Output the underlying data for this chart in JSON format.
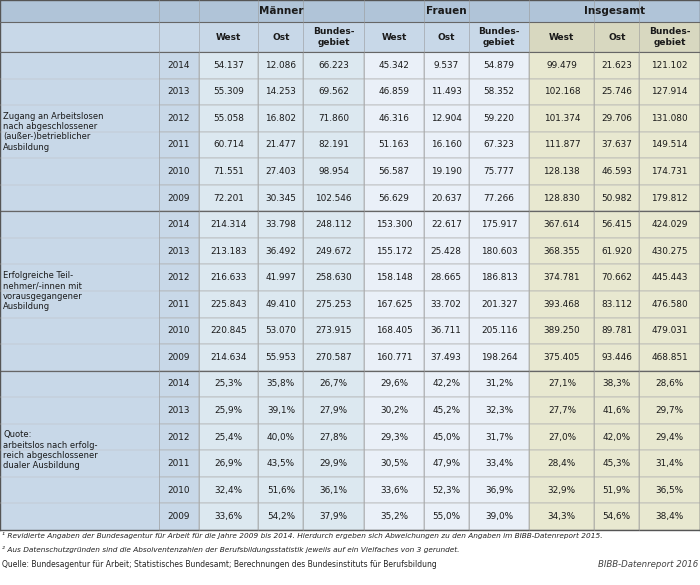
{
  "col_groups": [
    "Männer",
    "Frauen",
    "Insgesamt"
  ],
  "col_subheaders": [
    "West",
    "Ost",
    "Bundes-\ngebiet"
  ],
  "row_sections": [
    {
      "label": "Zugang an Arbeitslosen\nnach abgeschlossener\n(außer-)betrieblicher\nAusbildung",
      "years": [
        "2014",
        "2013",
        "2012",
        "2011",
        "2010",
        "2009"
      ],
      "data": [
        [
          "54.137",
          "12.086",
          "66.223",
          "45.342",
          "9.537",
          "54.879",
          "99.479",
          "21.623",
          "121.102"
        ],
        [
          "55.309",
          "14.253",
          "69.562",
          "46.859",
          "11.493",
          "58.352",
          "102.168",
          "25.746",
          "127.914"
        ],
        [
          "55.058",
          "16.802",
          "71.860",
          "46.316",
          "12.904",
          "59.220",
          "101.374",
          "29.706",
          "131.080"
        ],
        [
          "60.714",
          "21.477",
          "82.191",
          "51.163",
          "16.160",
          "67.323",
          "111.877",
          "37.637",
          "149.514"
        ],
        [
          "71.551",
          "27.403",
          "98.954",
          "56.587",
          "19.190",
          "75.777",
          "128.138",
          "46.593",
          "174.731"
        ],
        [
          "72.201",
          "30.345",
          "102.546",
          "56.629",
          "20.637",
          "77.266",
          "128.830",
          "50.982",
          "179.812"
        ]
      ]
    },
    {
      "label": "Erfolgreiche Teil-\nnehmer/-innen mit\nvorausgegangener\nAusbildung",
      "years": [
        "2014",
        "2013",
        "2012",
        "2011",
        "2010",
        "2009"
      ],
      "data": [
        [
          "214.314",
          "33.798",
          "248.112",
          "153.300",
          "22.617",
          "175.917",
          "367.614",
          "56.415",
          "424.029"
        ],
        [
          "213.183",
          "36.492",
          "249.672",
          "155.172",
          "25.428",
          "180.603",
          "368.355",
          "61.920",
          "430.275"
        ],
        [
          "216.633",
          "41.997",
          "258.630",
          "158.148",
          "28.665",
          "186.813",
          "374.781",
          "70.662",
          "445.443"
        ],
        [
          "225.843",
          "49.410",
          "275.253",
          "167.625",
          "33.702",
          "201.327",
          "393.468",
          "83.112",
          "476.580"
        ],
        [
          "220.845",
          "53.070",
          "273.915",
          "168.405",
          "36.711",
          "205.116",
          "389.250",
          "89.781",
          "479.031"
        ],
        [
          "214.634",
          "55.953",
          "270.587",
          "160.771",
          "37.493",
          "198.264",
          "375.405",
          "93.446",
          "468.851"
        ]
      ]
    },
    {
      "label": "Quote:\narbeitslos nach erfolg-\nreich abgeschlossener\ndualer Ausbildung",
      "years": [
        "2014",
        "2013",
        "2012",
        "2011",
        "2010",
        "2009"
      ],
      "data": [
        [
          "25,3%",
          "35,8%",
          "26,7%",
          "29,6%",
          "42,2%",
          "31,2%",
          "27,1%",
          "38,3%",
          "28,6%"
        ],
        [
          "25,9%",
          "39,1%",
          "27,9%",
          "30,2%",
          "45,2%",
          "32,3%",
          "27,7%",
          "41,6%",
          "29,7%"
        ],
        [
          "25,4%",
          "40,0%",
          "27,8%",
          "29,3%",
          "45,0%",
          "31,7%",
          "27,0%",
          "42,0%",
          "29,4%"
        ],
        [
          "26,9%",
          "43,5%",
          "29,9%",
          "30,5%",
          "47,9%",
          "33,4%",
          "28,4%",
          "45,3%",
          "31,4%"
        ],
        [
          "32,4%",
          "51,6%",
          "36,1%",
          "33,6%",
          "52,3%",
          "36,9%",
          "32,9%",
          "51,9%",
          "36,5%"
        ],
        [
          "33,6%",
          "54,2%",
          "37,9%",
          "35,2%",
          "55,0%",
          "39,0%",
          "34,3%",
          "54,6%",
          "38,4%"
        ]
      ]
    }
  ],
  "footnotes": [
    "¹ Revidierte Angaben der Bundesagentur für Arbeit für die Jahre 2009 bis 2014. Hierdurch ergeben sich Abweichungen zu den Angaben im BIBB-Datenreport 2015.",
    "² Aus Datenschutzgründen sind die Absolventenzahlen der Berufsbildungsstatistik jeweils auf ein Vielfaches von 3 gerundet.",
    "Quelle: Bundesagentur für Arbeit; Statistisches Bundesamt; Berechnungen des Bundesinstituts für Berufsbildung"
  ],
  "bibb_label": "BIBB-Datenreport 2016",
  "bg_header_blue": "#b0c4d8",
  "bg_col_header_light": "#c8d8e8",
  "bg_maenner_data": "#dce8f0",
  "bg_frauen_data": "#eaf0f8",
  "bg_insgesamt_data": "#e8e8d0",
  "bg_insgesamt_header": "#d8d8c0",
  "bg_label_col": "#c8d8e8",
  "bg_year_col": "#dce8f0",
  "border_dark": "#888888",
  "border_light": "#aaaaaa",
  "text_dark": "#1a1a1a",
  "footnote_color": "#222222"
}
